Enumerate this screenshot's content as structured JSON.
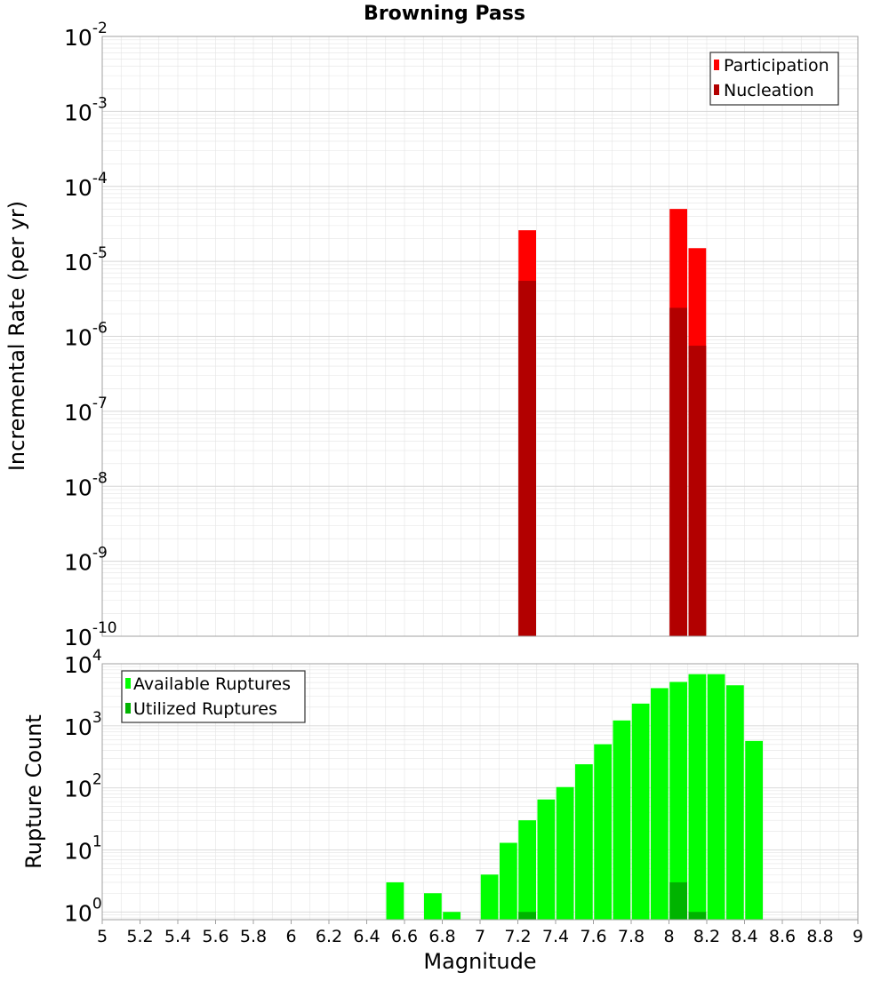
{
  "title": "Browning Pass",
  "colors": {
    "participation": "#ff0000",
    "nucleation": "#b20000",
    "available": "#00ff00",
    "utilized": "#00b300",
    "grid": "#e4e4e4",
    "frame": "#a0a0a0"
  },
  "chart_data": [
    {
      "type": "bar",
      "name": "rates",
      "ylabel": "Incremental Rate (per yr)",
      "yscale": "log",
      "ylim": [
        1e-10,
        0.01
      ],
      "ytick_exponents": [
        "-10",
        "-9",
        "-8",
        "-7",
        "-6",
        "-5",
        "-4",
        "-3",
        "-2"
      ],
      "ytick_base": "10",
      "grid": true,
      "legend": {
        "placement": "top-right",
        "entries": [
          "Participation",
          "Nucleation"
        ]
      },
      "series": [
        {
          "name": "Participation",
          "x": [
            7.25,
            8.05,
            8.15
          ],
          "values": [
            2.6e-05,
            5e-05,
            1.5e-05
          ]
        },
        {
          "name": "Nucleation",
          "x": [
            7.25,
            8.05,
            8.15
          ],
          "values": [
            5.5e-06,
            2.4e-06,
            7.5e-07
          ]
        }
      ]
    },
    {
      "type": "bar",
      "name": "ruptures",
      "ylabel": "Rupture Count",
      "xlabel": "Magnitude",
      "yscale": "log",
      "ylim": [
        0.75,
        10000
      ],
      "ytick_exponents": [
        "0",
        "1",
        "2",
        "3",
        "4"
      ],
      "ytick_base": "10",
      "xlim": [
        5,
        9
      ],
      "xticks": [
        "5",
        "5.2",
        "5.4",
        "5.6",
        "5.8",
        "6",
        "6.2",
        "6.4",
        "6.6",
        "6.8",
        "7",
        "7.2",
        "7.4",
        "7.6",
        "7.8",
        "8",
        "8.2",
        "8.4",
        "8.6",
        "8.8",
        "9"
      ],
      "grid": true,
      "legend": {
        "placement": "top-left",
        "entries": [
          "Available Ruptures",
          "Utilized Ruptures"
        ]
      },
      "series": [
        {
          "name": "Available Ruptures",
          "x": [
            6.55,
            6.75,
            6.85,
            7.05,
            7.15,
            7.25,
            7.35,
            7.45,
            7.55,
            7.65,
            7.75,
            7.85,
            7.95,
            8.05,
            8.15,
            8.25,
            8.35,
            8.45
          ],
          "values": [
            3,
            2,
            1,
            4,
            13,
            30,
            65,
            103,
            240,
            505,
            1220,
            2280,
            4050,
            5100,
            6800,
            6800,
            4500,
            570
          ]
        },
        {
          "name": "Utilized Ruptures",
          "x": [
            7.25,
            8.05,
            8.15
          ],
          "values": [
            1,
            3,
            1
          ]
        }
      ]
    }
  ]
}
